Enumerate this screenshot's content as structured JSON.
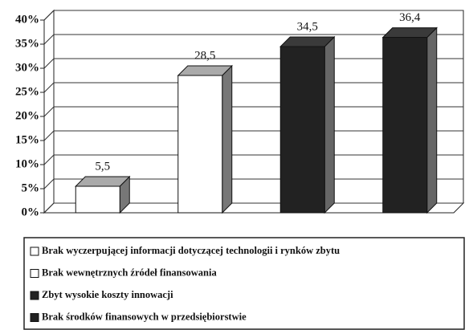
{
  "chart_data": {
    "type": "bar3d",
    "categories": [
      null
    ],
    "series": [
      {
        "name": "Brak wyczerpującej informacji dotyczącej technologii i rynków zbytu",
        "color": "#ffffff",
        "values": [
          5.5
        ],
        "value_labels": [
          "5,5"
        ]
      },
      {
        "name": "Brak wewnętrznych źródeł finansowania",
        "color": "#ffffff",
        "values": [
          28.5
        ],
        "value_labels": [
          "28,5"
        ]
      },
      {
        "name": "Zbyt wysokie koszty innowacji",
        "color": "#222222",
        "values": [
          34.5
        ],
        "value_labels": [
          "34,5"
        ]
      },
      {
        "name": "Brak środków finansowych w przedsiębiorstwie",
        "color": "#222222",
        "values": [
          36.4
        ],
        "value_labels": [
          "36,4"
        ]
      }
    ],
    "ylim": [
      0,
      40
    ],
    "yticks": [
      {
        "value": 0,
        "label": "0%"
      },
      {
        "value": 5,
        "label": "5%"
      },
      {
        "value": 10,
        "label": "10%"
      },
      {
        "value": 15,
        "label": "15%"
      },
      {
        "value": 20,
        "label": "20%"
      },
      {
        "value": 25,
        "label": "25%"
      },
      {
        "value": 30,
        "label": "30%"
      },
      {
        "value": 35,
        "label": "35%"
      },
      {
        "value": 40,
        "label": "40%"
      }
    ],
    "grid": true
  }
}
